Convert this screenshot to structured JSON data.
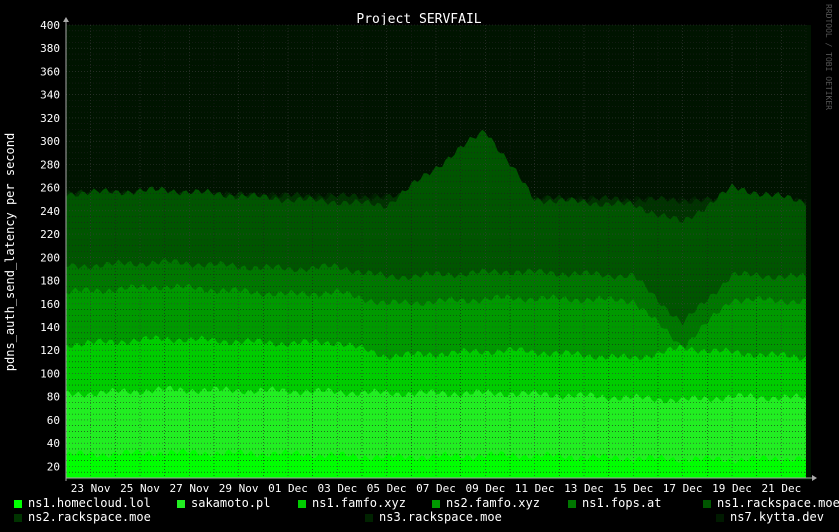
{
  "chart_data": {
    "type": "area",
    "stacked": true,
    "title": "Project SERVFAIL",
    "ylabel": "pdns_auth_send_latency per second",
    "xlabel": "",
    "ylim": [
      10,
      400
    ],
    "yticks": [
      20,
      40,
      60,
      80,
      100,
      120,
      140,
      160,
      180,
      200,
      220,
      240,
      260,
      280,
      300,
      320,
      340,
      360,
      380,
      400
    ],
    "x_tick_labels": [
      "23 Nov",
      "25 Nov",
      "27 Nov",
      "29 Nov",
      "01 Dec",
      "03 Dec",
      "05 Dec",
      "07 Dec",
      "09 Dec",
      "11 Dec",
      "13 Dec",
      "15 Dec",
      "17 Dec",
      "19 Dec",
      "21 Dec"
    ],
    "x_range_days": [
      "22 Nov",
      "22 Dec"
    ],
    "grid": true,
    "legend_position": "bottom",
    "background": "#000000",
    "series": [
      {
        "name": "ns1.homecloud.lol",
        "color": "#00ff00",
        "approx_cumulative": [
          {
            "x": "22 Nov",
            "y": 30
          },
          {
            "x": "26 Nov",
            "y": 32
          },
          {
            "x": "01 Dec",
            "y": 31
          },
          {
            "x": "05 Dec",
            "y": 28
          },
          {
            "x": "10 Dec",
            "y": 30
          },
          {
            "x": "15 Dec",
            "y": 27
          },
          {
            "x": "19 Dec",
            "y": 26
          },
          {
            "x": "22 Dec",
            "y": 27
          }
        ]
      },
      {
        "name": "sakamoto.pl",
        "color": "#22ee22",
        "approx_cumulative": [
          {
            "x": "22 Nov",
            "y": 82
          },
          {
            "x": "26 Nov",
            "y": 86
          },
          {
            "x": "01 Dec",
            "y": 85
          },
          {
            "x": "03 Dec",
            "y": 84
          },
          {
            "x": "05 Dec",
            "y": 83
          },
          {
            "x": "10 Dec",
            "y": 83
          },
          {
            "x": "15 Dec",
            "y": 79
          },
          {
            "x": "17 Dec",
            "y": 77
          },
          {
            "x": "19 Dec",
            "y": 80
          },
          {
            "x": "22 Dec",
            "y": 79
          }
        ]
      },
      {
        "name": "ns1.famfo.xyz",
        "color": "#00cc00",
        "approx_cumulative": [
          {
            "x": "22 Nov",
            "y": 125
          },
          {
            "x": "26 Nov",
            "y": 130
          },
          {
            "x": "01 Dec",
            "y": 126
          },
          {
            "x": "03 Dec",
            "y": 127
          },
          {
            "x": "05 Dec",
            "y": 115
          },
          {
            "x": "10 Dec",
            "y": 120
          },
          {
            "x": "15 Dec",
            "y": 113
          },
          {
            "x": "17 Dec",
            "y": 122
          },
          {
            "x": "19 Dec",
            "y": 118
          },
          {
            "x": "22 Dec",
            "y": 114
          }
        ]
      },
      {
        "name": "ns2.famfo.xyz",
        "color": "#009900",
        "approx_cumulative": [
          {
            "x": "22 Nov",
            "y": 170
          },
          {
            "x": "26 Nov",
            "y": 175
          },
          {
            "x": "01 Dec",
            "y": 168
          },
          {
            "x": "03 Dec",
            "y": 170
          },
          {
            "x": "05 Dec",
            "y": 160
          },
          {
            "x": "10 Dec",
            "y": 165
          },
          {
            "x": "15 Dec",
            "y": 163
          },
          {
            "x": "17 Dec",
            "y": 123
          },
          {
            "x": "19 Dec",
            "y": 164
          },
          {
            "x": "22 Dec",
            "y": 162
          }
        ]
      },
      {
        "name": "ns1.fops.at",
        "color": "#007700",
        "approx_cumulative": [
          {
            "x": "22 Nov",
            "y": 192
          },
          {
            "x": "26 Nov",
            "y": 196
          },
          {
            "x": "01 Dec",
            "y": 190
          },
          {
            "x": "03 Dec",
            "y": 192
          },
          {
            "x": "05 Dec",
            "y": 183
          },
          {
            "x": "10 Dec",
            "y": 188
          },
          {
            "x": "15 Dec",
            "y": 184
          },
          {
            "x": "17 Dec",
            "y": 143
          },
          {
            "x": "19 Dec",
            "y": 185
          },
          {
            "x": "22 Dec",
            "y": 183
          }
        ]
      },
      {
        "name": "ns1.rackspace.moe",
        "color": "#005500",
        "approx_cumulative": [
          {
            "x": "22 Nov",
            "y": 255
          },
          {
            "x": "26 Nov",
            "y": 258
          },
          {
            "x": "01 Dec",
            "y": 250
          },
          {
            "x": "03 Dec",
            "y": 248
          },
          {
            "x": "05 Dec",
            "y": 245
          },
          {
            "x": "09 Dec",
            "y": 310
          },
          {
            "x": "11 Dec",
            "y": 250
          },
          {
            "x": "15 Dec",
            "y": 245
          },
          {
            "x": "17 Dec",
            "y": 230
          },
          {
            "x": "19 Dec",
            "y": 260
          },
          {
            "x": "22 Dec",
            "y": 248
          }
        ]
      },
      {
        "name": "ns2.rackspace.moe",
        "color": "#003300",
        "approx_cumulative": [
          {
            "x": "22 Nov",
            "y": 255
          },
          {
            "x": "22 Dec",
            "y": 248
          }
        ]
      },
      {
        "name": "ns3.rackspace.moe",
        "color": "#002200",
        "approx_cumulative": [
          {
            "x": "22 Nov",
            "y": 255
          },
          {
            "x": "22 Dec",
            "y": 248
          }
        ]
      },
      {
        "name": "ns7.kytta.dev",
        "color": "#001a00",
        "approx_cumulative": [
          {
            "x": "22 Nov",
            "y": 255
          },
          {
            "x": "22 Dec",
            "y": 248
          }
        ]
      }
    ]
  },
  "watermark": "RRDTOOL / TOBI OETIKER"
}
